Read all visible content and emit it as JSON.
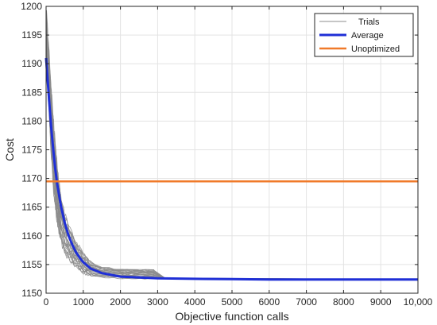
{
  "chart_data": {
    "type": "line",
    "xlabel": "Objective function calls",
    "ylabel": "Cost",
    "xlim": [
      0,
      10000
    ],
    "ylim": [
      1150,
      1200
    ],
    "xticks": [
      0,
      1000,
      2000,
      3000,
      4000,
      5000,
      6000,
      7000,
      8000,
      9000,
      10000
    ],
    "xtick_labels": [
      "0",
      "1000",
      "2000",
      "3000",
      "4000",
      "5000",
      "6000",
      "7000",
      "8000",
      "9000",
      "10,000"
    ],
    "yticks": [
      1150,
      1155,
      1160,
      1165,
      1170,
      1175,
      1180,
      1185,
      1190,
      1195,
      1200
    ],
    "grid": true,
    "legend_position": "top-right",
    "colors": {
      "trials": "#8c8c8c",
      "average": "#1f2fd6",
      "unoptimized": "#f07a2a"
    },
    "series": [
      {
        "name": "Trials",
        "style": "thin-gray",
        "note": "many individual trial curves",
        "x": [
          0,
          100,
          200,
          300,
          400,
          500,
          600,
          800,
          1000,
          1200,
          1500,
          2000,
          3000,
          5000,
          10000
        ],
        "y_low": [
          1193,
          1178,
          1168,
          1162,
          1159,
          1157,
          1156,
          1154.5,
          1153.5,
          1153,
          1152.8,
          1152.6,
          1152.5,
          1152.4,
          1152.4
        ],
        "y_high": [
          1200,
          1190,
          1180,
          1172,
          1167,
          1164,
          1162,
          1159,
          1157,
          1155.5,
          1154.5,
          1154.2,
          1154,
          1152.5,
          1152.4
        ],
        "late_trial": {
          "x": [
            1200,
            2900,
            2900,
            10000
          ],
          "y": [
            1154.2,
            1154.1,
            1152.5,
            1152.4
          ]
        }
      },
      {
        "name": "Average",
        "x": [
          0,
          50,
          100,
          150,
          200,
          250,
          300,
          400,
          500,
          600,
          700,
          800,
          900,
          1000,
          1200,
          1500,
          2000,
          3000,
          4000,
          5000,
          6000,
          8000,
          10000
        ],
        "y": [
          1191,
          1186.5,
          1182,
          1178,
          1174.5,
          1171.5,
          1169,
          1165.2,
          1162.3,
          1160.1,
          1158.5,
          1157.2,
          1156.2,
          1155.4,
          1154.3,
          1153.5,
          1152.9,
          1152.6,
          1152.5,
          1152.45,
          1152.4,
          1152.4,
          1152.4
        ]
      },
      {
        "name": "Unoptimized",
        "x": [
          0,
          10000
        ],
        "y": [
          1169.5,
          1169.5
        ]
      }
    ]
  }
}
